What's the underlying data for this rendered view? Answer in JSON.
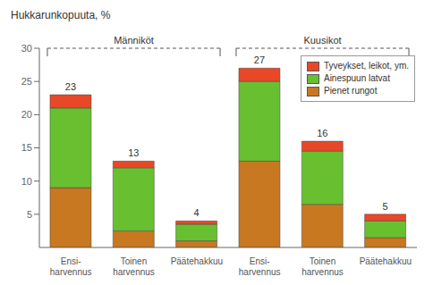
{
  "chart_data": {
    "type": "bar",
    "stacked": true,
    "title": "Hukkarunkopuuta, %",
    "categories": [
      "Ensi-\nharvennus",
      "Toinen\nharvennus",
      "Päätehakkuu",
      "Ensi-\nharvennus",
      "Toinen\nharvennus",
      "Päätehakkuu"
    ],
    "annotations": [
      "Männiköt",
      "Kuusikot"
    ],
    "series": [
      {
        "name": "Pienet rungot",
        "color": "#c87820",
        "values": [
          9.0,
          2.5,
          1.0,
          13.0,
          6.5,
          1.5
        ]
      },
      {
        "name": "Ainespuun latvat",
        "color": "#68c030",
        "values": [
          12.0,
          9.5,
          2.5,
          12.0,
          8.0,
          2.5
        ]
      },
      {
        "name": "Tyveykset, leikot, ym.",
        "color": "#e84828",
        "values": [
          2.0,
          1.0,
          0.5,
          2.0,
          1.5,
          1.0
        ]
      }
    ],
    "totals": [
      23,
      13,
      4,
      27,
      16,
      5
    ],
    "ylim": [
      0,
      30
    ],
    "yticks": [
      5,
      10,
      15,
      20,
      25,
      30
    ],
    "grid": false,
    "legend": "upper right"
  }
}
